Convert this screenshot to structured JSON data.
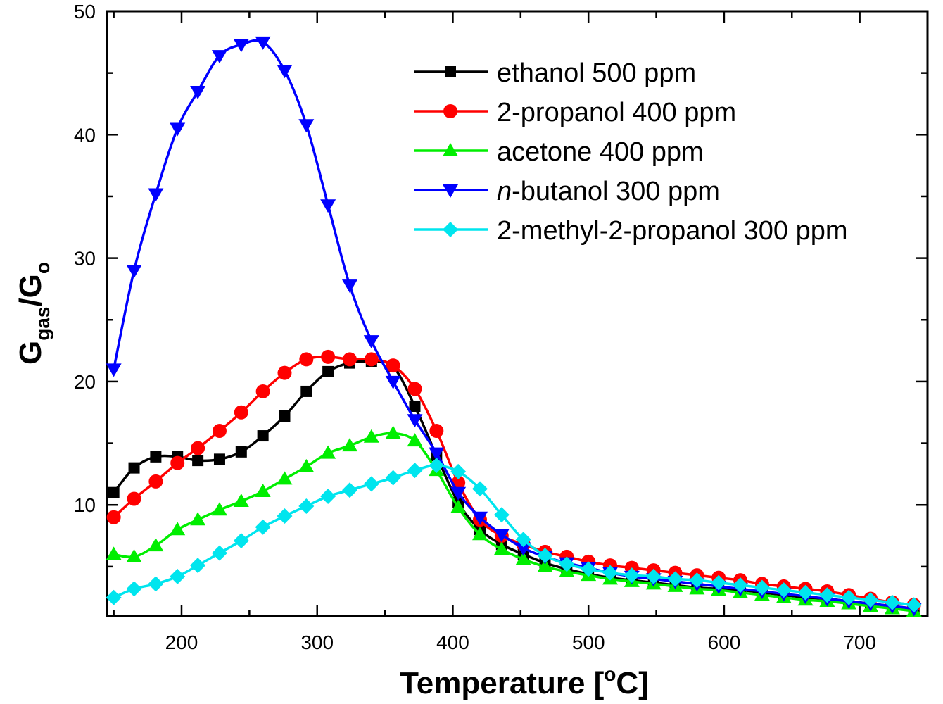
{
  "chart_data": {
    "type": "line",
    "title": "",
    "xlabel": "Temperature [",
    "xlabel_sup": "o",
    "xlabel_end": "C]",
    "ylabel_main": "G",
    "ylabel_sub": "gas",
    "ylabel_sep": "/G",
    "ylabel_sub2": "o",
    "xlim": [
      145,
      750
    ],
    "ylim": [
      1,
      50
    ],
    "xticks": [
      200,
      300,
      400,
      500,
      600,
      700
    ],
    "yticks": [
      10,
      20,
      30,
      40,
      50
    ],
    "legend_position": "top-right",
    "grid": false,
    "series": [
      {
        "name": "ethanol 500 ppm",
        "color": "#000000",
        "marker": "square",
        "x": [
          150,
          165,
          181,
          197,
          212,
          228,
          244,
          260,
          276,
          292,
          308,
          324,
          340,
          356,
          372,
          388,
          404,
          420,
          436,
          452,
          468,
          484,
          500,
          516,
          532,
          548,
          564,
          580,
          596,
          612,
          628,
          644,
          660,
          676,
          692,
          708,
          724,
          740
        ],
        "y": [
          11.0,
          13.0,
          13.9,
          13.9,
          13.6,
          13.7,
          14.3,
          15.6,
          17.2,
          19.2,
          20.8,
          21.5,
          21.6,
          21.2,
          18.0,
          14.0,
          10.2,
          8.0,
          6.8,
          6.0,
          5.3,
          4.8,
          4.4,
          4.1,
          3.9,
          3.7,
          3.5,
          3.3,
          3.2,
          3.1,
          2.9,
          2.7,
          2.5,
          2.4,
          2.2,
          2.0,
          1.8,
          1.6
        ]
      },
      {
        "name": "2-propanol 400 ppm",
        "color": "#ff0000",
        "marker": "circle",
        "x": [
          150,
          165,
          181,
          197,
          212,
          228,
          244,
          260,
          276,
          292,
          308,
          324,
          340,
          356,
          372,
          388,
          404,
          420,
          436,
          452,
          468,
          484,
          500,
          516,
          532,
          548,
          564,
          580,
          596,
          612,
          628,
          644,
          660,
          676,
          692,
          708,
          724,
          740
        ],
        "y": [
          9.0,
          10.5,
          11.9,
          13.4,
          14.6,
          16.0,
          17.5,
          19.2,
          20.7,
          21.8,
          22.0,
          21.8,
          21.8,
          21.3,
          19.4,
          16.0,
          11.8,
          8.8,
          7.5,
          6.8,
          6.2,
          5.8,
          5.4,
          5.1,
          4.9,
          4.7,
          4.5,
          4.3,
          4.1,
          3.9,
          3.6,
          3.4,
          3.2,
          3.0,
          2.7,
          2.4,
          2.1,
          1.9
        ]
      },
      {
        "name": "acetone 400 ppm",
        "color": "#00ee00",
        "marker": "triangle-up",
        "x": [
          150,
          165,
          181,
          197,
          212,
          228,
          244,
          260,
          276,
          292,
          308,
          324,
          340,
          356,
          372,
          388,
          404,
          420,
          436,
          452,
          468,
          484,
          500,
          516,
          532,
          548,
          564,
          580,
          596,
          612,
          628,
          644,
          660,
          676,
          692,
          708,
          724,
          740
        ],
        "y": [
          6.0,
          5.8,
          6.7,
          8.0,
          8.8,
          9.6,
          10.3,
          11.1,
          12.1,
          13.1,
          14.2,
          14.8,
          15.5,
          15.8,
          15.2,
          12.8,
          9.8,
          7.6,
          6.4,
          5.6,
          5.0,
          4.6,
          4.3,
          4.0,
          3.8,
          3.6,
          3.4,
          3.2,
          3.1,
          2.9,
          2.7,
          2.5,
          2.3,
          2.2,
          2.0,
          1.8,
          1.6,
          1.4
        ]
      },
      {
        "name": "n-butanol 300 ppm",
        "name_italic": "n",
        "name_rest": "-butanol 300 ppm",
        "color": "#0000ff",
        "marker": "triangle-down",
        "x": [
          150,
          165,
          181,
          197,
          212,
          228,
          244,
          260,
          276,
          292,
          308,
          324,
          340,
          356,
          372,
          388,
          404,
          420,
          436,
          452,
          468,
          484,
          500,
          516,
          532,
          548,
          564,
          580,
          596,
          612,
          628,
          644,
          660,
          676,
          692,
          708,
          724,
          740
        ],
        "y": [
          21.0,
          29.0,
          35.2,
          40.5,
          43.5,
          46.4,
          47.3,
          47.5,
          45.2,
          40.8,
          34.3,
          27.8,
          23.3,
          20.0,
          16.9,
          14.2,
          11.0,
          9.0,
          7.6,
          6.5,
          5.8,
          5.3,
          4.9,
          4.5,
          4.2,
          4.0,
          3.8,
          3.6,
          3.4,
          3.2,
          3.0,
          2.8,
          2.6,
          2.4,
          2.2,
          2.0,
          1.8,
          1.6
        ]
      },
      {
        "name": "2-methyl-2-propanol 300 ppm",
        "color": "#00e5ee",
        "marker": "diamond",
        "x": [
          150,
          165,
          181,
          197,
          212,
          228,
          244,
          260,
          276,
          292,
          308,
          324,
          340,
          356,
          372,
          388,
          404,
          420,
          436,
          452,
          468,
          484,
          500,
          516,
          532,
          548,
          564,
          580,
          596,
          612,
          628,
          644,
          660,
          676,
          692,
          708,
          724,
          740
        ],
        "y": [
          2.5,
          3.2,
          3.6,
          4.2,
          5.1,
          6.1,
          7.1,
          8.2,
          9.1,
          9.9,
          10.7,
          11.2,
          11.7,
          12.2,
          12.8,
          13.2,
          12.7,
          11.3,
          9.2,
          7.2,
          5.9,
          5.2,
          4.8,
          4.5,
          4.3,
          4.2,
          4.0,
          3.9,
          3.7,
          3.5,
          3.3,
          3.1,
          2.9,
          2.7,
          2.5,
          2.3,
          2.1,
          1.9
        ]
      }
    ]
  }
}
